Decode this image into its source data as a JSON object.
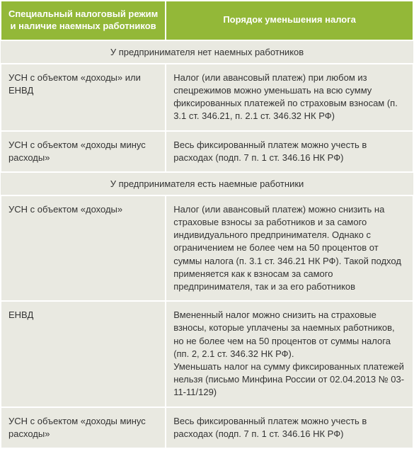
{
  "header": {
    "col_left": "Специальный налоговый режим и наличие наемных работников",
    "col_right": "Порядок уменьшения налога"
  },
  "sections": [
    {
      "title": "У предпринимателя нет наемных работников",
      "rows": [
        {
          "left": "УСН с объектом «доходы» или ЕНВД",
          "right": "Налог (или авансовый платеж) при любом из спецрежимов можно уменьшать на всю сумму фиксированных платежей по страховым взносам (п. 3.1 ст. 346.21, п. 2.1 ст. 346.32 НК РФ)"
        },
        {
          "left": "УСН с объектом «доходы минус расходы»",
          "right": "Весь фиксированный платеж можно учесть в расходах (подп. 7 п. 1 ст. 346.16 НК РФ)"
        }
      ]
    },
    {
      "title": "У предпринимателя есть наемные работники",
      "rows": [
        {
          "left": "УСН с объектом «доходы»",
          "right": "Налог (или авансовый платеж) можно снизить на страховые взносы за работников и за самого индивидуального предпринимателя. Однако с ограничением не более чем на 50 процентов от суммы налога (п. 3.1 ст. 346.21 НК РФ). Такой подход применяется как к взносам за самого предпринимателя, так и за его работников"
        },
        {
          "left": "ЕНВД",
          "right": "Вмененный налог можно снизить на страховые взносы, которые уплачены за наемных работников, но не более чем на 50 процентов от суммы налога (пп. 2, 2.1 ст. 346.32 НК РФ).\nУменьшать налог на сумму фиксированных платежей нельзя (письмо Минфина России от 02.04.2013 № 03-11-11/129)"
        },
        {
          "left": "УСН с объектом «доходы минус расходы»",
          "right": "Весь фиксированный платеж можно учесть в расходах (подп. 7 п. 1 ст. 346.16 НК РФ)"
        }
      ]
    }
  ],
  "colors": {
    "header_bg": "#93b838",
    "header_fg": "#ffffff",
    "cell_bg": "#e9e9e1",
    "cell_fg": "#333333",
    "border": "#ffffff"
  }
}
